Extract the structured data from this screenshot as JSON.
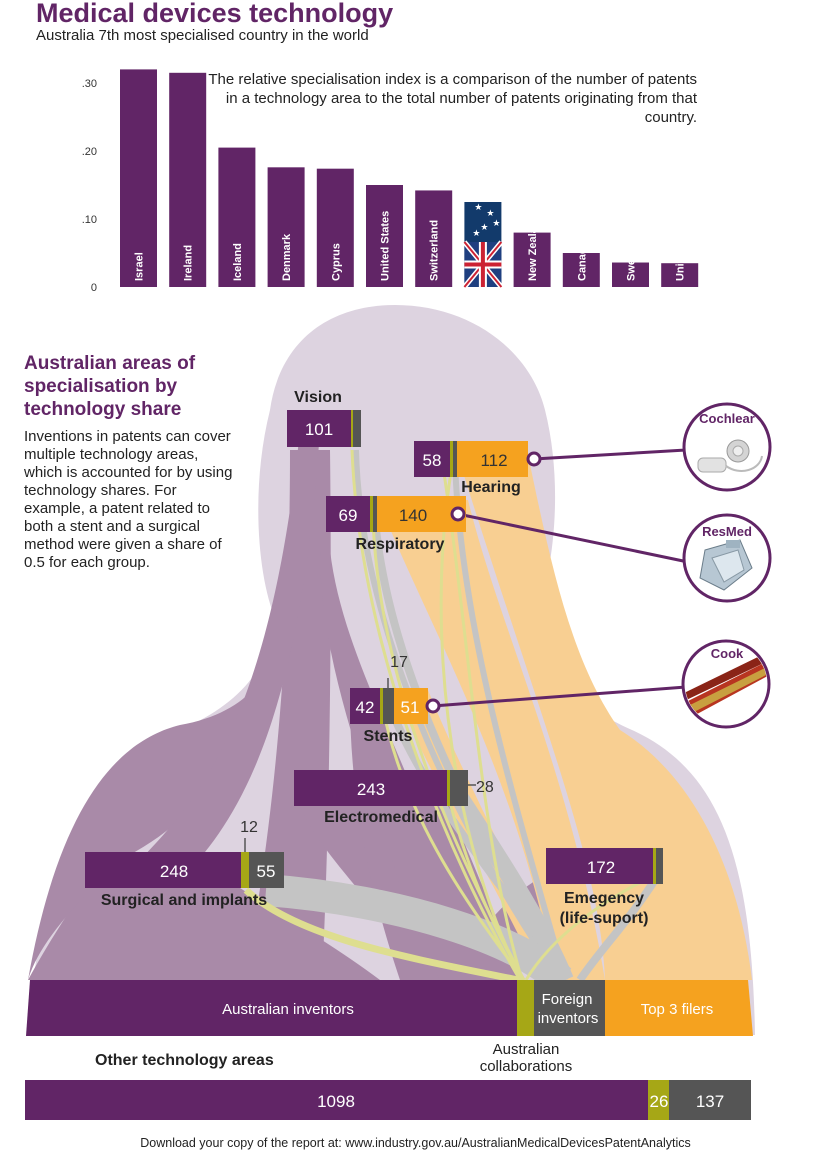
{
  "title": "Medical devices technology",
  "subtitle": "Australia 7th most specialised country in the world",
  "description": "The relative specialisation index is a comparison of the number of patents in a technology area to the total number of patents originating from that country.",
  "colors": {
    "purple": "#612566",
    "orange": "#f5a21f",
    "grey": "#555555",
    "olive": "#a6a716",
    "light_purple_bg": "#ddd3e0",
    "body": "#a98aa8",
    "light_orange": "#f8cf92",
    "flow_grey": "#c4c4c4"
  },
  "chart_data": [
    {
      "type": "bar",
      "categories": [
        "Israel",
        "Ireland",
        "Iceland",
        "Denmark",
        "Cyprus",
        "United States",
        "Switzerland",
        "Australia",
        "New Zealand",
        "Canada",
        "Sweden",
        "United Kingdom"
      ],
      "values": [
        0.32,
        0.315,
        0.205,
        0.176,
        0.174,
        0.15,
        0.142,
        0.125,
        0.08,
        0.05,
        0.036,
        0.035
      ],
      "yticks": [
        ".30",
        ".20",
        ".10",
        "0"
      ],
      "ylim": [
        0,
        0.32
      ],
      "highlight": "Australia",
      "highlight_icon": "australian-flag-icon",
      "title": "",
      "xlabel": "",
      "ylabel": ""
    },
    {
      "type": "table",
      "title": "Australian areas of specialisation by technology share",
      "columns": [
        "Australian inventors",
        "Australian collaborations",
        "Foreign inventors",
        "Top 3 filers"
      ],
      "rows": [
        {
          "area": "Vision",
          "values": [
            101,
            null,
            null,
            null
          ]
        },
        {
          "area": "Hearing",
          "values": [
            58,
            null,
            null,
            112
          ]
        },
        {
          "area": "Respiratory",
          "values": [
            69,
            null,
            null,
            140
          ]
        },
        {
          "area": "Stents",
          "values": [
            42,
            null,
            17,
            51
          ]
        },
        {
          "area": "Electromedical",
          "values": [
            243,
            null,
            28,
            null
          ]
        },
        {
          "area": "Surgical and implants",
          "values": [
            248,
            12,
            55,
            null
          ]
        },
        {
          "area": "Emegency (life-suport)",
          "values": [
            172,
            null,
            null,
            null
          ]
        },
        {
          "area": "Other technology areas",
          "values": [
            1098,
            26,
            137,
            null
          ]
        }
      ]
    }
  ],
  "section": {
    "heading": "Australian areas of specialisation by technology share",
    "text": "Inventions in patents can cover multiple technology areas, which is accounted for by using technology shares. For example, a patent related to both a stent and a surgical method were given a share of 0.5 for each group."
  },
  "areas": {
    "vision": {
      "label": "Vision",
      "au": "101"
    },
    "hearing": {
      "label": "Hearing",
      "au": "58",
      "top3": "112"
    },
    "respiratory": {
      "label": "Respiratory",
      "au": "69",
      "top3": "140"
    },
    "stents": {
      "label": "Stents",
      "au": "42",
      "foreign": "17",
      "top3": "51"
    },
    "electromedical": {
      "label": "Electromedical",
      "au": "243",
      "foreign": "28"
    },
    "surgical": {
      "label": "Surgical and implants",
      "au": "248",
      "collab": "12",
      "foreign": "55"
    },
    "emergency": {
      "label_line1": "Emegency",
      "label_line2": "(life-suport)",
      "au": "172"
    }
  },
  "companies": {
    "cochlear": "Cochlear",
    "resmed": "ResMed",
    "cook": "Cook"
  },
  "base": {
    "australian_inventors": "Australian inventors",
    "foreign_line1": "Foreign",
    "foreign_line2": "inventors",
    "top3": "Top 3 filers",
    "collab_line1": "Australian",
    "collab_line2": "collaborations"
  },
  "other": {
    "heading": "Other technology areas",
    "au": "1098",
    "collab": "26",
    "foreign": "137"
  },
  "footer": "Download your copy of the report at: www.industry.gov.au/AustralianMedicalDevicesPatentAnalytics"
}
